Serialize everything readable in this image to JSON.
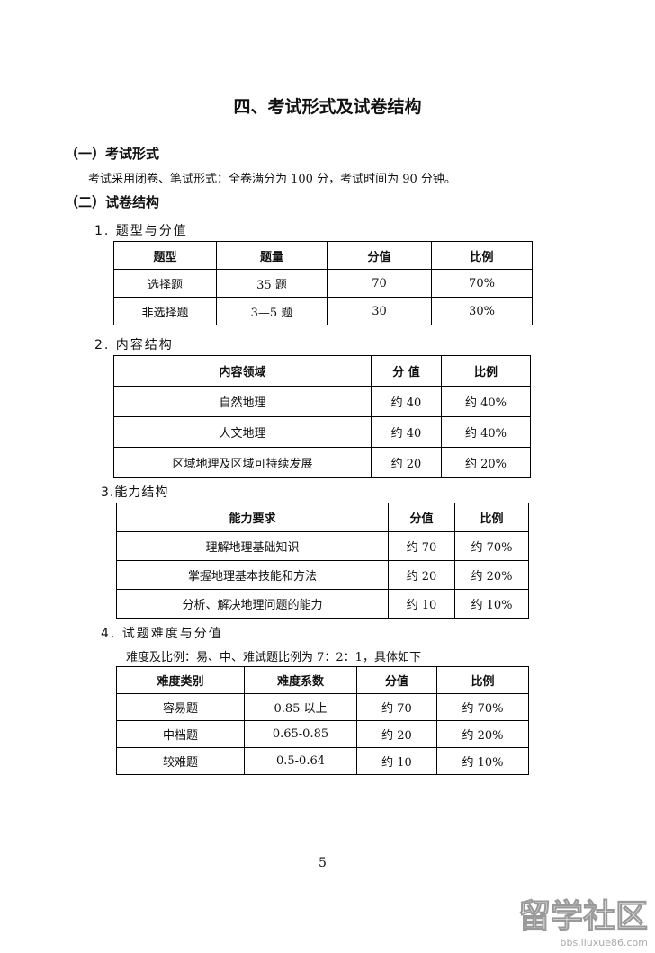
{
  "title": "四、考试形式及试卷结构",
  "section1": {
    "heading": "（一）考试形式",
    "text": "考试采用闭卷、笔试形式：全卷满分为 100 分，考试时间为 90 分钟。"
  },
  "section2": {
    "heading": "（二）试卷结构"
  },
  "t1": {
    "heading": "1. 题型与分值",
    "headers": [
      "题型",
      "题量",
      "分值",
      "比例"
    ],
    "rows": [
      [
        "选择题",
        "35 题",
        "70",
        "70%"
      ],
      [
        "非选择题",
        "3—5 题",
        "30",
        "30%"
      ]
    ]
  },
  "t2": {
    "heading": "2. 内容结构",
    "headers": [
      "内容领域",
      "分 值",
      "比例"
    ],
    "rows": [
      [
        "自然地理",
        "约 40",
        "约 40%"
      ],
      [
        "人文地理",
        "约 40",
        "约 40%"
      ],
      [
        "区域地理及区域可持续发展",
        "约 20",
        "约 20%"
      ]
    ]
  },
  "t3": {
    "heading": "3.能力结构",
    "headers": [
      "能力要求",
      "分值",
      "比例"
    ],
    "rows": [
      [
        "理解地理基础知识",
        "约 70",
        "约 70%"
      ],
      [
        "掌握地理基本技能和方法",
        "约 20",
        "约 20%"
      ],
      [
        "分析、解决地理问题的能力",
        "约 10",
        "约 10%"
      ]
    ]
  },
  "t4": {
    "heading": "4. 试题难度与分值",
    "note": "难度及比例：易、中、难试题比例为 7：2：1，具体如下",
    "headers": [
      "难度类别",
      "难度系数",
      "分值",
      "比例"
    ],
    "rows": [
      [
        "容易题",
        "0.85 以上",
        "约 70",
        "约 70%"
      ],
      [
        "中档题",
        "0.65-0.85",
        "约 20",
        "约 20%"
      ],
      [
        "较难题",
        "0.5-0.64",
        "约 10",
        "约 10%"
      ]
    ]
  },
  "page_number": "5",
  "watermark": {
    "logo": "留学社区",
    "url": "bbs.liuxue86.com"
  }
}
